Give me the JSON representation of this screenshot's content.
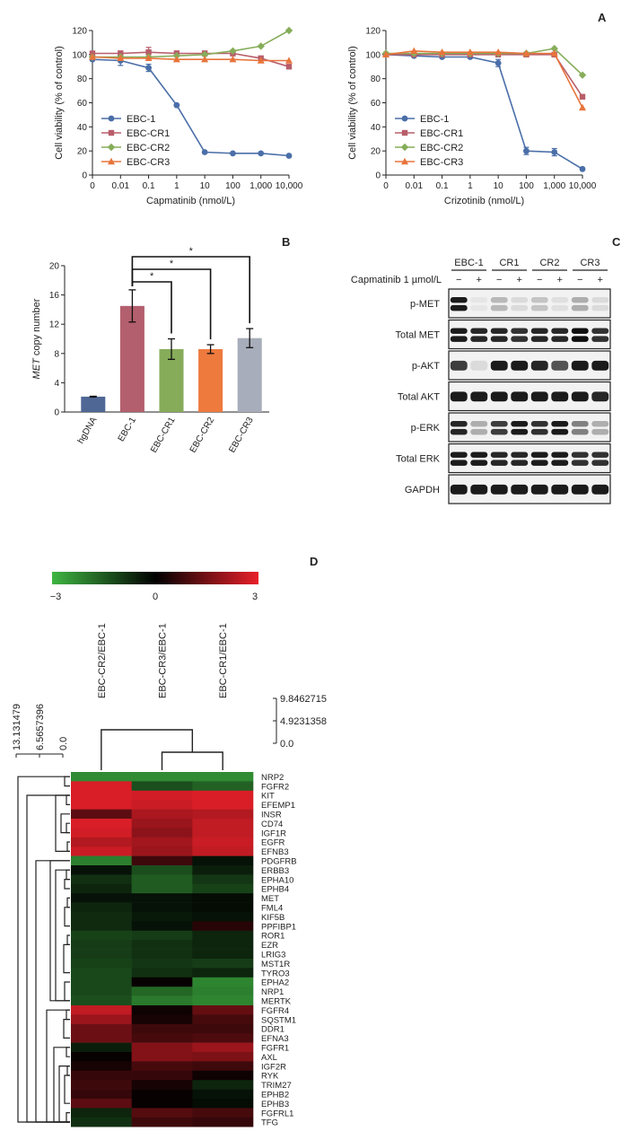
{
  "figure": {
    "panel_labels": {
      "a": "A",
      "b": "B",
      "c": "C",
      "d": "D"
    }
  },
  "chart_data": [
    {
      "type": "line",
      "panel": "A-left",
      "x_ticks": [
        "0",
        "0.01",
        "0.1",
        "1",
        "10",
        "100",
        "1,000",
        "10,000"
      ],
      "xlabel": "Capmatinib (nmol/L)",
      "ylabel": "Cell viability (% of control)",
      "ylim": [
        0,
        120
      ],
      "y_ticks": [
        0,
        20,
        40,
        60,
        80,
        100,
        120
      ],
      "legend_position": "bottom-left",
      "series": [
        {
          "name": "EBC-1",
          "color": "#4a6ea8",
          "marker": "circle",
          "values": [
            96,
            95,
            89,
            58,
            19,
            18,
            18,
            16
          ],
          "errors": [
            0,
            4,
            3,
            0,
            0,
            0,
            0,
            0
          ]
        },
        {
          "name": "EBC-CR1",
          "color": "#b85e6a",
          "marker": "square",
          "values": [
            101,
            101,
            102,
            101,
            101,
            101,
            97,
            90
          ],
          "errors": [
            0,
            2,
            4,
            2,
            2,
            2,
            0,
            0
          ]
        },
        {
          "name": "EBC-CR2",
          "color": "#86ad5a",
          "marker": "diamond",
          "values": [
            98,
            98,
            98,
            99,
            100,
            103,
            107,
            120
          ],
          "errors": [
            0,
            0,
            0,
            0,
            0,
            0,
            0,
            0
          ]
        },
        {
          "name": "EBC-CR3",
          "color": "#e8743b",
          "marker": "triangle",
          "values": [
            98,
            97,
            97,
            96,
            96,
            96,
            95,
            95
          ],
          "errors": [
            0,
            0,
            0,
            0,
            0,
            0,
            0,
            0
          ]
        }
      ]
    },
    {
      "type": "line",
      "panel": "A-right",
      "x_ticks": [
        "0",
        "0.01",
        "0.1",
        "1",
        "10",
        "100",
        "1,000",
        "10,000"
      ],
      "xlabel": "Crizotinib (nmol/L)",
      "ylabel": "Cell viability (% of control)",
      "ylim": [
        0,
        120
      ],
      "y_ticks": [
        0,
        20,
        40,
        60,
        80,
        100,
        120
      ],
      "legend_position": "bottom-left",
      "series": [
        {
          "name": "EBC-1",
          "color": "#4a6ea8",
          "marker": "circle",
          "values": [
            100,
            99,
            98,
            98,
            93,
            20,
            19,
            5
          ],
          "errors": [
            0,
            0,
            0,
            0,
            3,
            3,
            3,
            0
          ]
        },
        {
          "name": "EBC-CR1",
          "color": "#b85e6a",
          "marker": "square",
          "values": [
            100,
            100,
            100,
            100,
            100,
            100,
            100,
            65
          ],
          "errors": [
            0,
            0,
            0,
            0,
            0,
            0,
            0,
            0
          ]
        },
        {
          "name": "EBC-CR2",
          "color": "#86ad5a",
          "marker": "diamond",
          "values": [
            101,
            101,
            101,
            101,
            101,
            101,
            105,
            83
          ],
          "errors": [
            0,
            0,
            0,
            0,
            0,
            0,
            0,
            0
          ]
        },
        {
          "name": "EBC-CR3",
          "color": "#e8743b",
          "marker": "triangle",
          "values": [
            100,
            103,
            102,
            102,
            102,
            101,
            101,
            56
          ],
          "errors": [
            0,
            0,
            0,
            0,
            0,
            0,
            0,
            0
          ]
        }
      ]
    },
    {
      "type": "bar",
      "panel": "B",
      "categories": [
        "hgDNA",
        "EBC-1",
        "EBC-CR1",
        "EBC-CR2",
        "EBC-CR3"
      ],
      "values": [
        2.1,
        14.5,
        8.6,
        8.6,
        10.1
      ],
      "errors": [
        0.05,
        2.2,
        1.4,
        0.6,
        1.3
      ],
      "colors": [
        "#4f6795",
        "#b45f6e",
        "#86ac5a",
        "#ee7a3e",
        "#a7adba"
      ],
      "ylabel_italic": "MET",
      "ylabel_rest": " copy number",
      "ylim": [
        0,
        20
      ],
      "y_ticks": [
        0,
        4,
        8,
        12,
        16,
        20
      ],
      "significance": [
        {
          "from": "EBC-1",
          "to": "EBC-CR1",
          "label": "*"
        },
        {
          "from": "EBC-1",
          "to": "EBC-CR2",
          "label": "*"
        },
        {
          "from": "EBC-1",
          "to": "EBC-CR3",
          "label": "*"
        }
      ]
    },
    {
      "type": "heatmap",
      "panel": "D",
      "columns": [
        "EBC-CR2/EBC-1",
        "EBC-CR3/EBC-1",
        "EBC-CR1/EBC-1"
      ],
      "colorbar": {
        "min": -3,
        "mid": 0,
        "max": 3,
        "labels": [
          "−3",
          "0",
          "3"
        ],
        "low_color": "#3fb542",
        "mid_color": "#000000",
        "high_color": "#e8202a"
      },
      "col_dendrogram_ticks": [
        "9.8462715",
        "4.9231358",
        "0.0"
      ],
      "row_dendrogram_ticks": [
        "13.131479",
        "6.5657396",
        "0.0"
      ],
      "rows": [
        {
          "gene": "NRP2",
          "values": [
            -2.3,
            -2.3,
            -2.3
          ]
        },
        {
          "gene": "FGFR2",
          "values": [
            2.8,
            -1.3,
            -1.6
          ]
        },
        {
          "gene": "KIT",
          "values": [
            2.8,
            2.7,
            2.8
          ]
        },
        {
          "gene": "EFEMP1",
          "values": [
            2.8,
            2.6,
            2.8
          ]
        },
        {
          "gene": "INSR",
          "values": [
            1.2,
            2.2,
            2.3
          ]
        },
        {
          "gene": "CD74",
          "values": [
            2.8,
            2.0,
            2.5
          ]
        },
        {
          "gene": "IGF1R",
          "values": [
            2.7,
            1.8,
            2.5
          ]
        },
        {
          "gene": "EGFR",
          "values": [
            2.3,
            2.1,
            2.6
          ]
        },
        {
          "gene": "EFNB3",
          "values": [
            2.6,
            2.0,
            2.5
          ]
        },
        {
          "gene": "PDGFRB",
          "values": [
            -2.1,
            0.8,
            -0.3
          ]
        },
        {
          "gene": "ERBB3",
          "values": [
            -0.3,
            -1.3,
            -0.5
          ]
        },
        {
          "gene": "EPHA10",
          "values": [
            -0.8,
            -1.5,
            -0.9
          ]
        },
        {
          "gene": "EPHB4",
          "values": [
            -0.6,
            -1.5,
            -1.1
          ]
        },
        {
          "gene": "MET",
          "values": [
            -0.3,
            -0.3,
            -0.2
          ]
        },
        {
          "gene": "FML4",
          "values": [
            -0.6,
            -0.3,
            -0.2
          ]
        },
        {
          "gene": "KIF5B",
          "values": [
            -0.7,
            -0.4,
            -0.3
          ]
        },
        {
          "gene": "PPFIBP1",
          "values": [
            -0.7,
            -0.3,
            0.5
          ]
        },
        {
          "gene": "ROR1",
          "values": [
            -1.1,
            -1.0,
            -0.6
          ]
        },
        {
          "gene": "EZR",
          "values": [
            -1.0,
            -0.8,
            -0.6
          ]
        },
        {
          "gene": "LRIG3",
          "values": [
            -1.0,
            -0.8,
            -0.6
          ]
        },
        {
          "gene": "MST1R",
          "values": [
            -1.1,
            -0.9,
            -1.0
          ]
        },
        {
          "gene": "TYRO3",
          "values": [
            -1.2,
            -0.8,
            -0.6
          ]
        },
        {
          "gene": "EPHA2",
          "values": [
            -1.2,
            0.1,
            -2.2
          ]
        },
        {
          "gene": "NRP1",
          "values": [
            -1.2,
            -1.7,
            -2.1
          ]
        },
        {
          "gene": "MERTK",
          "values": [
            -1.3,
            -2.0,
            -2.2
          ]
        },
        {
          "gene": "FGFR4",
          "values": [
            2.5,
            0.2,
            1.3
          ]
        },
        {
          "gene": "SQSTM1",
          "values": [
            2.0,
            0.3,
            0.9
          ]
        },
        {
          "gene": "DDR1",
          "values": [
            1.4,
            0.8,
            0.8
          ]
        },
        {
          "gene": "EFNA3",
          "values": [
            1.4,
            0.9,
            1.0
          ]
        },
        {
          "gene": "FGFR1",
          "values": [
            -0.5,
            1.7,
            2.0
          ]
        },
        {
          "gene": "AXL",
          "values": [
            0.1,
            1.7,
            1.6
          ]
        },
        {
          "gene": "IGF2R",
          "values": [
            0.3,
            0.9,
            0.8
          ]
        },
        {
          "gene": "RYK",
          "values": [
            0.7,
            0.7,
            0.2
          ]
        },
        {
          "gene": "TRIM27",
          "values": [
            0.8,
            0.3,
            -0.6
          ]
        },
        {
          "gene": "EPHB2",
          "values": [
            0.7,
            0.1,
            -0.3
          ]
        },
        {
          "gene": "EPHB3",
          "values": [
            1.2,
            0.1,
            -0.2
          ]
        },
        {
          "gene": "FGFRL1",
          "values": [
            -0.6,
            1.1,
            0.9
          ]
        },
        {
          "gene": "TFG",
          "values": [
            -0.8,
            0.8,
            0.7
          ]
        }
      ]
    }
  ],
  "western_blot": {
    "groups": [
      "EBC-1",
      "CR1",
      "CR2",
      "CR3"
    ],
    "treatment_label": "Capmatinib 1 µmol/L",
    "lane_signs": [
      "−",
      "+",
      "−",
      "+",
      "−",
      "+",
      "−",
      "+"
    ],
    "rows": [
      {
        "label": "p-MET",
        "pattern": "double",
        "intensity": [
          0.95,
          0.05,
          0.25,
          0.1,
          0.2,
          0.08,
          0.3,
          0.1
        ]
      },
      {
        "label": "Total MET",
        "pattern": "double",
        "intensity": [
          0.95,
          0.9,
          0.9,
          0.85,
          0.9,
          0.9,
          1.0,
          0.85
        ]
      },
      {
        "label": "p-AKT",
        "pattern": "single",
        "intensity": [
          0.8,
          0.1,
          0.95,
          0.95,
          0.9,
          0.7,
          0.95,
          0.95
        ]
      },
      {
        "label": "Total AKT",
        "pattern": "single",
        "intensity": [
          0.95,
          0.95,
          0.95,
          0.95,
          0.95,
          0.95,
          0.95,
          0.9
        ]
      },
      {
        "label": "p-ERK",
        "pattern": "double",
        "intensity": [
          0.9,
          0.3,
          0.8,
          0.95,
          0.85,
          0.95,
          0.5,
          0.3
        ]
      },
      {
        "label": "Total ERK",
        "pattern": "double",
        "intensity": [
          0.95,
          0.95,
          0.9,
          0.9,
          0.95,
          0.95,
          0.85,
          0.85
        ]
      },
      {
        "label": "GAPDH",
        "pattern": "single",
        "intensity": [
          0.95,
          0.95,
          0.95,
          0.95,
          0.95,
          0.95,
          0.95,
          0.95
        ]
      }
    ]
  }
}
